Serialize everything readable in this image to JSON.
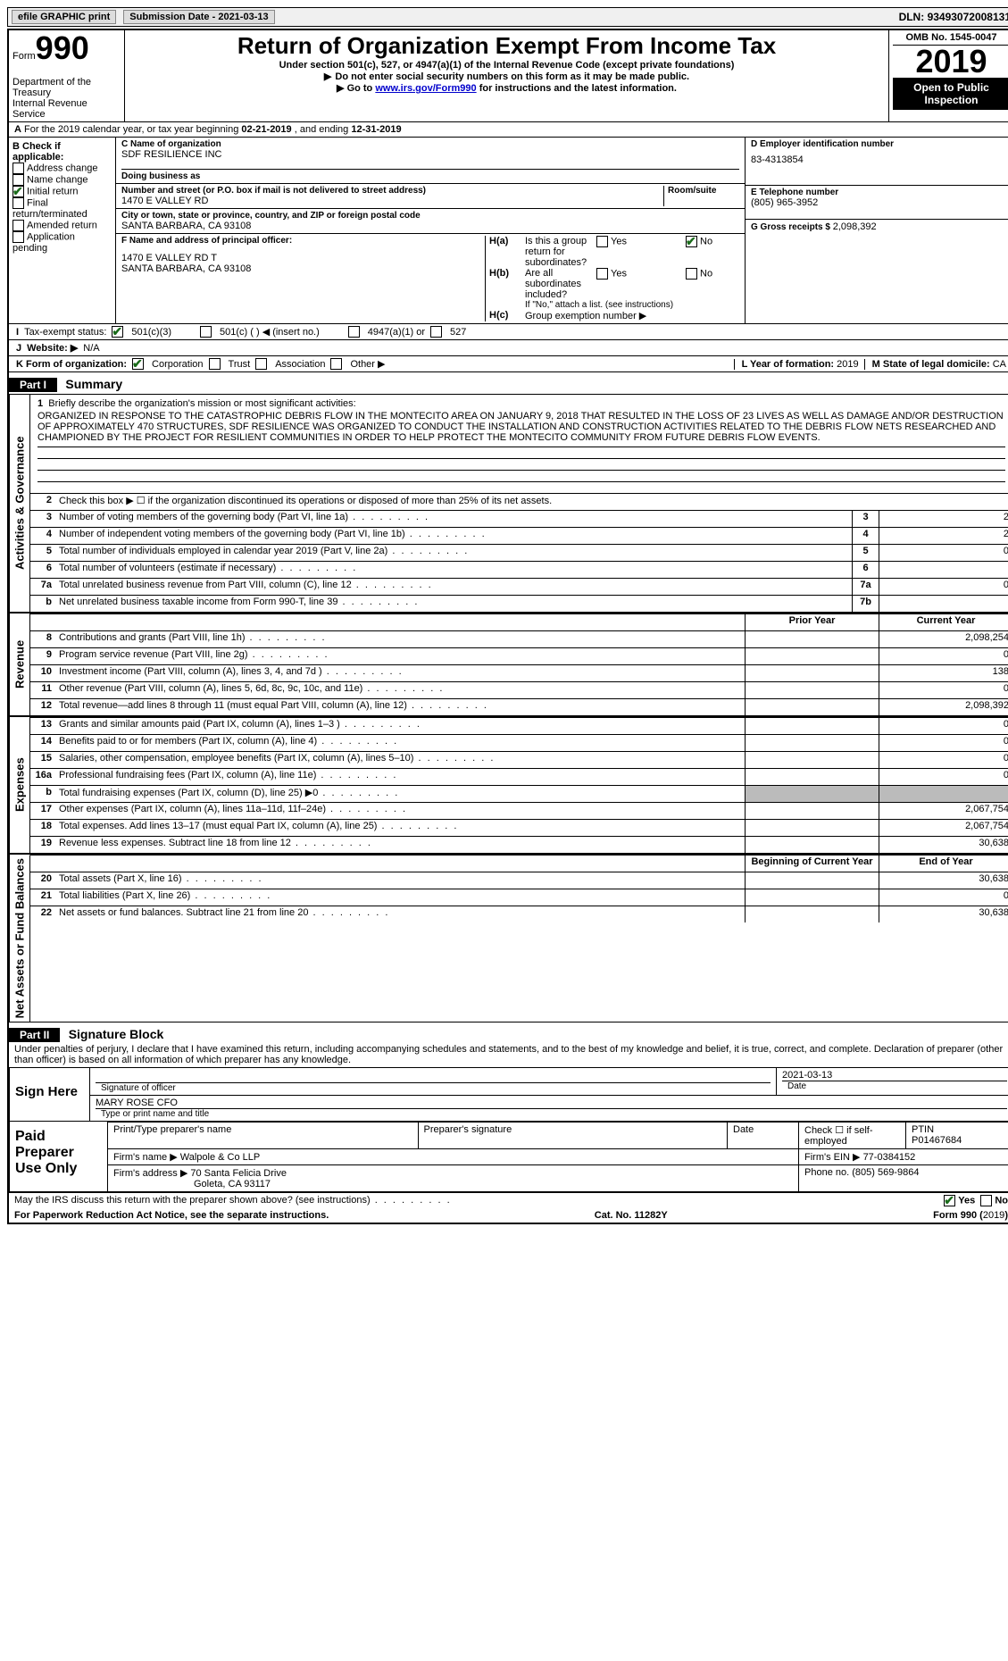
{
  "topbar": {
    "efile": "efile GRAPHIC print",
    "submission_label": "Submission Date - ",
    "submission_date": "2021-03-13",
    "dln_label": "DLN: ",
    "dln": "93493072008131"
  },
  "header": {
    "form_word": "Form",
    "form_num": "990",
    "dept": "Department of the Treasury",
    "irs": "Internal Revenue Service",
    "title": "Return of Organization Exempt From Income Tax",
    "subtitle": "Under section 501(c), 527, or 4947(a)(1) of the Internal Revenue Code (except private foundations)",
    "warn1": "Do not enter social security numbers on this form as it may be made public.",
    "warn2_pre": "Go to ",
    "warn2_link": "www.irs.gov/Form990",
    "warn2_post": " for instructions and the latest information.",
    "omb": "OMB No. 1545-0047",
    "year": "2019",
    "open": "Open to Public Inspection"
  },
  "row_a": {
    "label_a": "A",
    "text": "For the 2019 calendar year, or tax year beginning ",
    "begin": "02-21-2019",
    "mid": " , and ending ",
    "end": "12-31-2019"
  },
  "colB": {
    "label": "B Check if applicable:",
    "opts": [
      "Address change",
      "Name change",
      "Initial return",
      "Final return/terminated",
      "Amended return",
      "Application pending"
    ],
    "checked_idx": 2
  },
  "colC": {
    "c_label": "C Name of organization",
    "c_name": "SDF RESILIENCE INC",
    "dba_label": "Doing business as",
    "dba": "",
    "street_label": "Number and street (or P.O. box if mail is not delivered to street address)",
    "street": "1470 E VALLEY RD",
    "room_label": "Room/suite",
    "city_label": "City or town, state or province, country, and ZIP or foreign postal code",
    "city": "SANTA BARBARA, CA  93108",
    "f_label": "F Name and address of principal officer:",
    "f_addr1": "1470 E VALLEY RD T",
    "f_addr2": "SANTA BARBARA, CA  93108"
  },
  "colD": {
    "d_label": "D Employer identification number",
    "d_val": "83-4313854",
    "e_label": "E Telephone number",
    "e_val": "(805) 965-3952",
    "g_label": "G Gross receipts $ ",
    "g_val": "2,098,392"
  },
  "h": {
    "ha_label": "H(a)",
    "ha_text": "Is this a group return for subordinates?",
    "ha_yes": "Yes",
    "ha_no": "No",
    "hb_label": "H(b)",
    "hb_text": "Are all subordinates included?",
    "hb_note": "If \"No,\" attach a list. (see instructions)",
    "hc_label": "H(c)",
    "hc_text": "Group exemption number ▶"
  },
  "status": {
    "i_label": "I",
    "tax_label": "Tax-exempt status:",
    "o1": "501(c)(3)",
    "o2": "501(c) (   ) ◀ (insert no.)",
    "o3": "4947(a)(1) or",
    "o4": "527"
  },
  "website": {
    "j_label": "J",
    "label": "Website: ▶",
    "val": "N/A"
  },
  "korg": {
    "k_label": "K Form of organization:",
    "opts": [
      "Corporation",
      "Trust",
      "Association",
      "Other ▶"
    ],
    "l_label": "L Year of formation: ",
    "l_val": "2019",
    "m_label": "M State of legal domicile: ",
    "m_val": "CA"
  },
  "part1": {
    "part": "Part I",
    "title": "Summary",
    "mission_lead_n": "1",
    "mission_lead": "Briefly describe the organization's mission or most significant activities:",
    "mission": "ORGANIZED IN RESPONSE TO THE CATASTROPHIC DEBRIS FLOW IN THE MONTECITO AREA ON JANUARY 9, 2018 THAT RESULTED IN THE LOSS OF 23 LIVES AS WELL AS DAMAGE AND/OR DESTRUCTION OF APPROXIMATELY 470 STRUCTURES, SDF RESILIENCE WAS ORGANIZED TO CONDUCT THE INSTALLATION AND CONSTRUCTION ACTIVITIES RELATED TO THE DEBRIS FLOW NETS RESEARCHED AND CHAMPIONED BY THE PROJECT FOR RESILIENT COMMUNITIES IN ORDER TO HELP PROTECT THE MONTECITO COMMUNITY FROM FUTURE DEBRIS FLOW EVENTS.",
    "l2": "Check this box ▶ ☐ if the organization discontinued its operations or disposed of more than 25% of its net assets.",
    "hdr_prior": "Prior Year",
    "hdr_curr": "Current Year",
    "hdr_begin": "Beginning of Current Year",
    "hdr_end": "End of Year"
  },
  "sections": [
    {
      "vlabel": "Activities & Governance",
      "has_mission": true,
      "lines": [
        {
          "n": "2",
          "t": "Check this box ▶",
          "box": "",
          "extra": "if the organization discontinued its operations or disposed of more than 25% of its net assets.",
          "nohdr": true
        },
        {
          "n": "3",
          "t": "Number of voting members of the governing body (Part VI, line 1a)",
          "box": "3",
          "curr": "2",
          "small": true
        },
        {
          "n": "4",
          "t": "Number of independent voting members of the governing body (Part VI, line 1b)",
          "box": "4",
          "curr": "2",
          "small": true
        },
        {
          "n": "5",
          "t": "Total number of individuals employed in calendar year 2019 (Part V, line 2a)",
          "box": "5",
          "curr": "0",
          "small": true
        },
        {
          "n": "6",
          "t": "Total number of volunteers (estimate if necessary)",
          "box": "6",
          "curr": "",
          "small": true
        },
        {
          "n": "7a",
          "t": "Total unrelated business revenue from Part VIII, column (C), line 12",
          "box": "7a",
          "curr": "0",
          "small": true
        },
        {
          "n": "",
          "sub": "b",
          "t": "Net unrelated business taxable income from Form 990-T, line 39",
          "box": "7b",
          "curr": "",
          "small": true
        }
      ]
    },
    {
      "vlabel": "Revenue",
      "header": true,
      "lines": [
        {
          "n": "8",
          "t": "Contributions and grants (Part VIII, line 1h)",
          "prior": "",
          "curr": "2,098,254"
        },
        {
          "n": "9",
          "t": "Program service revenue (Part VIII, line 2g)",
          "prior": "",
          "curr": "0"
        },
        {
          "n": "10",
          "t": "Investment income (Part VIII, column (A), lines 3, 4, and 7d )",
          "prior": "",
          "curr": "138"
        },
        {
          "n": "11",
          "t": "Other revenue (Part VIII, column (A), lines 5, 6d, 8c, 9c, 10c, and 11e)",
          "prior": "",
          "curr": "0"
        },
        {
          "n": "12",
          "t": "Total revenue—add lines 8 through 11 (must equal Part VIII, column (A), line 12)",
          "prior": "",
          "curr": "2,098,392"
        }
      ]
    },
    {
      "vlabel": "Expenses",
      "lines": [
        {
          "n": "13",
          "t": "Grants and similar amounts paid (Part IX, column (A), lines 1–3 )",
          "prior": "",
          "curr": "0"
        },
        {
          "n": "14",
          "t": "Benefits paid to or for members (Part IX, column (A), line 4)",
          "prior": "",
          "curr": "0"
        },
        {
          "n": "15",
          "t": "Salaries, other compensation, employee benefits (Part IX, column (A), lines 5–10)",
          "prior": "",
          "curr": "0"
        },
        {
          "n": "16a",
          "t": "Professional fundraising fees (Part IX, column (A), line 11e)",
          "prior": "",
          "curr": "0"
        },
        {
          "n": "b",
          "t": "Total fundraising expenses (Part IX, column (D), line 25) ▶0",
          "prior_gray": true,
          "curr_gray": true
        },
        {
          "n": "17",
          "t": "Other expenses (Part IX, column (A), lines 11a–11d, 11f–24e)",
          "prior": "",
          "curr": "2,067,754"
        },
        {
          "n": "18",
          "t": "Total expenses. Add lines 13–17 (must equal Part IX, column (A), line 25)",
          "prior": "",
          "curr": "2,067,754"
        },
        {
          "n": "19",
          "t": "Revenue less expenses. Subtract line 18 from line 12",
          "prior": "",
          "curr": "30,638"
        }
      ]
    },
    {
      "vlabel": "Net Assets or Fund Balances",
      "header_alt": true,
      "lines": [
        {
          "n": "20",
          "t": "Total assets (Part X, line 16)",
          "prior": "",
          "curr": "30,638"
        },
        {
          "n": "21",
          "t": "Total liabilities (Part X, line 26)",
          "prior": "",
          "curr": "0"
        },
        {
          "n": "22",
          "t": "Net assets or fund balances. Subtract line 21 from line 20",
          "prior": "",
          "curr": "30,638"
        }
      ]
    }
  ],
  "part2": {
    "part": "Part II",
    "title": "Signature Block",
    "decl": "Under penalties of perjury, I declare that I have examined this return, including accompanying schedules and statements, and to the best of my knowledge and belief, it is true, correct, and complete. Declaration of preparer (other than officer) is based on all information of which preparer has any knowledge.",
    "sign_here": "Sign Here",
    "sig_of_officer": "Signature of officer",
    "sig_date_label": "Date",
    "sig_date": "2021-03-13",
    "name": "MARY ROSE  CFO",
    "name_sub": "Type or print name and title",
    "paid": "Paid Preparer Use Only",
    "h1": "Print/Type preparer's name",
    "h2": "Preparer's signature",
    "h3": "Date",
    "h4_pre": "Check ☐ if self-employed",
    "h5_label": "PTIN",
    "h5": "P01467684",
    "firm_label": "Firm's name    ▶ ",
    "firm": "Walpole & Co LLP",
    "ein_label": "Firm's EIN ▶ ",
    "ein": "77-0384152",
    "addr_label": "Firm's address ▶ ",
    "addr1": "70 Santa Felicia Drive",
    "addr2": "Goleta, CA  93117",
    "phone_label": "Phone no. ",
    "phone": "(805) 569-9864",
    "discuss": "May the IRS discuss this return with the preparer shown above? (see instructions)",
    "yes": "Yes",
    "no": "No"
  },
  "footer": {
    "pra": "For Paperwork Reduction Act Notice, see the separate instructions.",
    "cat": "Cat. No. 11282Y",
    "form": "Form 990 (2019)"
  }
}
